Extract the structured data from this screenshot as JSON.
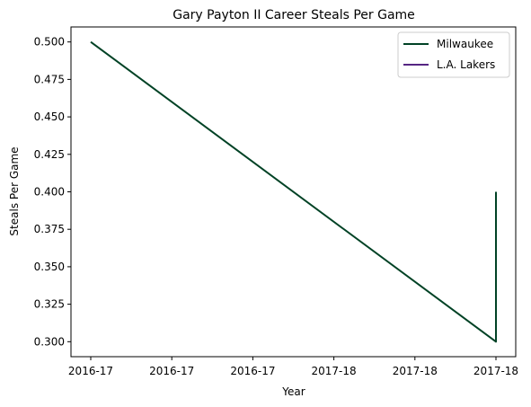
{
  "chart_data": {
    "type": "line",
    "title": "Gary Payton II Career Steals Per Game",
    "xlabel": "Year",
    "ylabel": "Steals Per Game",
    "x_tick_labels": [
      "2016-17",
      "2016-17",
      "2016-17",
      "2017-18",
      "2017-18",
      "2017-18"
    ],
    "ylim": [
      0.29,
      0.51
    ],
    "y_ticks": [
      0.3,
      0.325,
      0.35,
      0.375,
      0.4,
      0.425,
      0.45,
      0.475,
      0.5
    ],
    "y_tick_labels": [
      "0.300",
      "0.325",
      "0.350",
      "0.375",
      "0.400",
      "0.425",
      "0.450",
      "0.475",
      "0.500"
    ],
    "grid": false,
    "legend_position": "top-right",
    "series": [
      {
        "name": "Milwaukee",
        "color": "#004225",
        "x": [
          "2016-17",
          "2017-18",
          "2017-18"
        ],
        "y": [
          0.5,
          0.3,
          0.4
        ]
      },
      {
        "name": "L.A. Lakers",
        "color": "#552583",
        "x": [],
        "y": []
      }
    ]
  }
}
